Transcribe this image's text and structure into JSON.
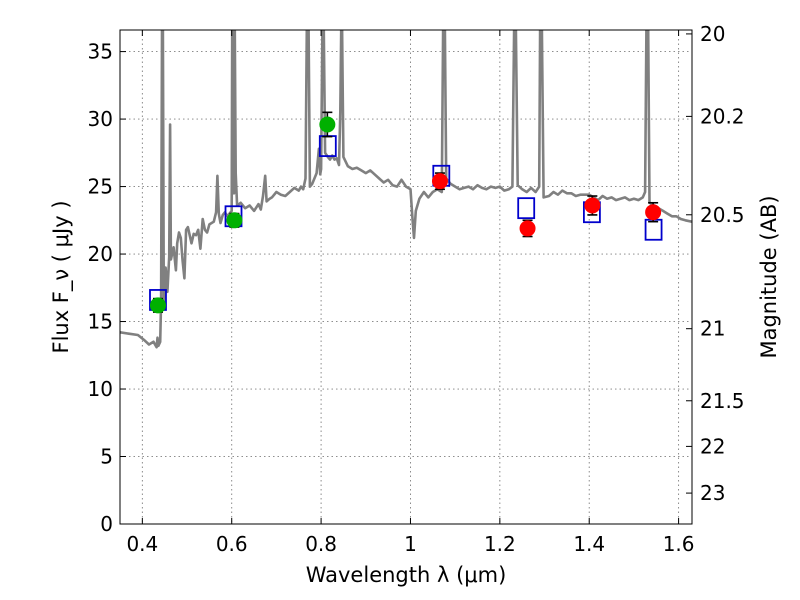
{
  "chart_data": {
    "type": "scatter",
    "xlabel": "Wavelength  λ (μm)",
    "ylabel": "Flux  F_ν  ( μJy )",
    "ylabel_right": "Magnitude (AB)",
    "xlim": [
      0.35,
      1.63
    ],
    "ylim": [
      0,
      36.6
    ],
    "x_ticks": [
      0.4,
      0.6,
      0.8,
      1.0,
      1.2,
      1.4,
      1.6
    ],
    "x_tick_labels": [
      "0.4",
      "0.6",
      "0.8",
      "1",
      "1.2",
      "1.4",
      "1.6"
    ],
    "y_ticks": [
      0,
      5,
      10,
      15,
      20,
      25,
      30,
      35
    ],
    "y_tick_labels": [
      "0",
      "5",
      "10",
      "15",
      "20",
      "25",
      "30",
      "35"
    ],
    "right_ticks": [
      {
        "flux": 36.31,
        "label": "20"
      },
      {
        "flux": 30.2,
        "label": "20.2"
      },
      {
        "flux": 22.91,
        "label": "20.5"
      },
      {
        "flux": 14.47,
        "label": "21"
      },
      {
        "flux": 9.13,
        "label": "21.5"
      },
      {
        "flux": 5.75,
        "label": "22"
      },
      {
        "flux": 2.29,
        "label": "23"
      }
    ],
    "grid": true,
    "colors": {
      "model": "#808080",
      "green": "#00b000",
      "red": "#ff0000",
      "model_box": "#0000cc",
      "errorbar": "#000000"
    },
    "series": [
      {
        "marker": "green-circle",
        "points": [
          {
            "x": 0.435,
            "y": 16.2,
            "err": 0.5
          },
          {
            "x": 0.606,
            "y": 22.5,
            "err": 0.5
          },
          {
            "x": 0.814,
            "y": 29.6,
            "err": 0.9
          }
        ]
      },
      {
        "marker": "red-circle",
        "points": [
          {
            "x": 1.066,
            "y": 25.4,
            "err": 0.6
          },
          {
            "x": 1.262,
            "y": 21.9,
            "err": 0.6
          },
          {
            "x": 1.407,
            "y": 23.6,
            "err": 0.7
          },
          {
            "x": 1.543,
            "y": 23.1,
            "err": 0.7
          }
        ]
      },
      {
        "marker": "blue-open-square",
        "points": [
          {
            "x": 0.435,
            "y": 16.6
          },
          {
            "x": 0.604,
            "y": 22.8
          },
          {
            "x": 0.815,
            "y": 28.0
          },
          {
            "x": 1.069,
            "y": 25.8
          },
          {
            "x": 1.259,
            "y": 23.4
          },
          {
            "x": 1.406,
            "y": 23.1
          },
          {
            "x": 1.544,
            "y": 21.8
          }
        ]
      }
    ],
    "model_spectrum": [
      [
        0.35,
        14.2
      ],
      [
        0.37,
        14.1
      ],
      [
        0.39,
        14.0
      ],
      [
        0.405,
        13.6
      ],
      [
        0.415,
        13.3
      ],
      [
        0.425,
        13.5
      ],
      [
        0.432,
        13.1
      ],
      [
        0.434,
        13.8
      ],
      [
        0.436,
        13.2
      ],
      [
        0.44,
        13.5
      ],
      [
        0.442,
        16.5
      ],
      [
        0.444,
        36.6
      ],
      [
        0.446,
        36.6
      ],
      [
        0.448,
        16.2
      ],
      [
        0.452,
        19.0
      ],
      [
        0.456,
        17.2
      ],
      [
        0.46,
        19.8
      ],
      [
        0.462,
        29.6
      ],
      [
        0.464,
        19.6
      ],
      [
        0.47,
        20.5
      ],
      [
        0.475,
        18.8
      ],
      [
        0.478,
        20.8
      ],
      [
        0.482,
        21.6
      ],
      [
        0.486,
        21.2
      ],
      [
        0.49,
        19.5
      ],
      [
        0.494,
        18.2
      ],
      [
        0.498,
        21.8
      ],
      [
        0.502,
        22.0
      ],
      [
        0.51,
        20.8
      ],
      [
        0.515,
        21.5
      ],
      [
        0.52,
        21.4
      ],
      [
        0.525,
        21.8
      ],
      [
        0.53,
        20.4
      ],
      [
        0.535,
        22.6
      ],
      [
        0.54,
        21.8
      ],
      [
        0.545,
        21.6
      ],
      [
        0.55,
        22.2
      ],
      [
        0.56,
        22.4
      ],
      [
        0.565,
        23.1
      ],
      [
        0.568,
        25.8
      ],
      [
        0.571,
        23.0
      ],
      [
        0.575,
        22.3
      ],
      [
        0.58,
        22.9
      ],
      [
        0.585,
        23.1
      ],
      [
        0.59,
        22.8
      ],
      [
        0.595,
        23.0
      ],
      [
        0.6,
        23.2
      ],
      [
        0.601,
        36.6
      ],
      [
        0.603,
        36.6
      ],
      [
        0.605,
        24.5
      ],
      [
        0.607,
        36.6
      ],
      [
        0.609,
        26.0
      ],
      [
        0.612,
        23.6
      ],
      [
        0.62,
        23.8
      ],
      [
        0.63,
        23.4
      ],
      [
        0.64,
        23.6
      ],
      [
        0.65,
        23.2
      ],
      [
        0.66,
        23.7
      ],
      [
        0.665,
        23.3
      ],
      [
        0.67,
        24.3
      ],
      [
        0.675,
        25.8
      ],
      [
        0.678,
        23.9
      ],
      [
        0.685,
        24.1
      ],
      [
        0.69,
        24.2
      ],
      [
        0.7,
        24.6
      ],
      [
        0.71,
        24.4
      ],
      [
        0.72,
        24.3
      ],
      [
        0.73,
        24.6
      ],
      [
        0.74,
        24.9
      ],
      [
        0.75,
        24.7
      ],
      [
        0.755,
        25.0
      ],
      [
        0.76,
        24.8
      ],
      [
        0.765,
        25.6
      ],
      [
        0.768,
        36.6
      ],
      [
        0.772,
        36.6
      ],
      [
        0.775,
        25.0
      ],
      [
        0.78,
        25.2
      ],
      [
        0.79,
        26.0
      ],
      [
        0.795,
        27.8
      ],
      [
        0.798,
        25.9
      ],
      [
        0.8,
        26.3
      ],
      [
        0.803,
        36.6
      ],
      [
        0.806,
        36.6
      ],
      [
        0.809,
        27.5
      ],
      [
        0.815,
        27.2
      ],
      [
        0.82,
        27.0
      ],
      [
        0.825,
        27.3
      ],
      [
        0.83,
        27.0
      ],
      [
        0.835,
        27.1
      ],
      [
        0.84,
        26.6
      ],
      [
        0.843,
        30.5
      ],
      [
        0.845,
        36.6
      ],
      [
        0.847,
        36.6
      ],
      [
        0.85,
        27.2
      ],
      [
        0.86,
        26.5
      ],
      [
        0.87,
        26.3
      ],
      [
        0.88,
        26.4
      ],
      [
        0.89,
        26.2
      ],
      [
        0.9,
        26.0
      ],
      [
        0.91,
        26.2
      ],
      [
        0.92,
        25.9
      ],
      [
        0.93,
        25.6
      ],
      [
        0.94,
        25.3
      ],
      [
        0.95,
        25.5
      ],
      [
        0.96,
        25.1
      ],
      [
        0.97,
        25.0
      ],
      [
        0.98,
        25.5
      ],
      [
        0.99,
        25.0
      ],
      [
        1.0,
        24.8
      ],
      [
        1.005,
        22.4
      ],
      [
        1.008,
        21.2
      ],
      [
        1.012,
        23.2
      ],
      [
        1.02,
        24.1
      ],
      [
        1.03,
        24.6
      ],
      [
        1.04,
        24.2
      ],
      [
        1.05,
        24.6
      ],
      [
        1.06,
        24.8
      ],
      [
        1.07,
        24.6
      ],
      [
        1.073,
        36.6
      ],
      [
        1.077,
        36.6
      ],
      [
        1.08,
        25.6
      ],
      [
        1.09,
        25.2
      ],
      [
        1.1,
        25.0
      ],
      [
        1.11,
        24.8
      ],
      [
        1.12,
        24.9
      ],
      [
        1.13,
        25.0
      ],
      [
        1.14,
        24.8
      ],
      [
        1.15,
        25.1
      ],
      [
        1.16,
        24.9
      ],
      [
        1.17,
        24.8
      ],
      [
        1.18,
        25.0
      ],
      [
        1.19,
        24.9
      ],
      [
        1.2,
        25.0
      ],
      [
        1.21,
        24.7
      ],
      [
        1.22,
        24.8
      ],
      [
        1.228,
        25.0
      ],
      [
        1.232,
        36.6
      ],
      [
        1.236,
        36.6
      ],
      [
        1.24,
        25.1
      ],
      [
        1.25,
        24.8
      ],
      [
        1.255,
        24.7
      ],
      [
        1.26,
        24.6
      ],
      [
        1.27,
        24.9
      ],
      [
        1.28,
        24.6
      ],
      [
        1.288,
        25.0
      ],
      [
        1.29,
        36.6
      ],
      [
        1.294,
        36.6
      ],
      [
        1.298,
        24.2
      ],
      [
        1.31,
        24.3
      ],
      [
        1.32,
        24.6
      ],
      [
        1.33,
        24.4
      ],
      [
        1.34,
        24.7
      ],
      [
        1.35,
        24.5
      ],
      [
        1.36,
        24.5
      ],
      [
        1.37,
        24.3
      ],
      [
        1.38,
        24.4
      ],
      [
        1.39,
        24.4
      ],
      [
        1.4,
        24.4
      ],
      [
        1.41,
        24.2
      ],
      [
        1.42,
        24.0
      ],
      [
        1.43,
        24.3
      ],
      [
        1.44,
        24.1
      ],
      [
        1.45,
        24.2
      ],
      [
        1.46,
        24.0
      ],
      [
        1.47,
        24.1
      ],
      [
        1.48,
        24.2
      ],
      [
        1.49,
        24.0
      ],
      [
        1.5,
        24.1
      ],
      [
        1.51,
        24.0
      ],
      [
        1.52,
        24.2
      ],
      [
        1.525,
        24.6
      ],
      [
        1.528,
        36.6
      ],
      [
        1.532,
        36.6
      ],
      [
        1.535,
        23.8
      ],
      [
        1.545,
        23.6
      ],
      [
        1.555,
        23.4
      ],
      [
        1.565,
        23.2
      ],
      [
        1.575,
        23.0
      ],
      [
        1.585,
        22.8
      ],
      [
        1.595,
        22.8
      ],
      [
        1.605,
        22.6
      ],
      [
        1.615,
        22.5
      ],
      [
        1.63,
        22.4
      ]
    ]
  }
}
